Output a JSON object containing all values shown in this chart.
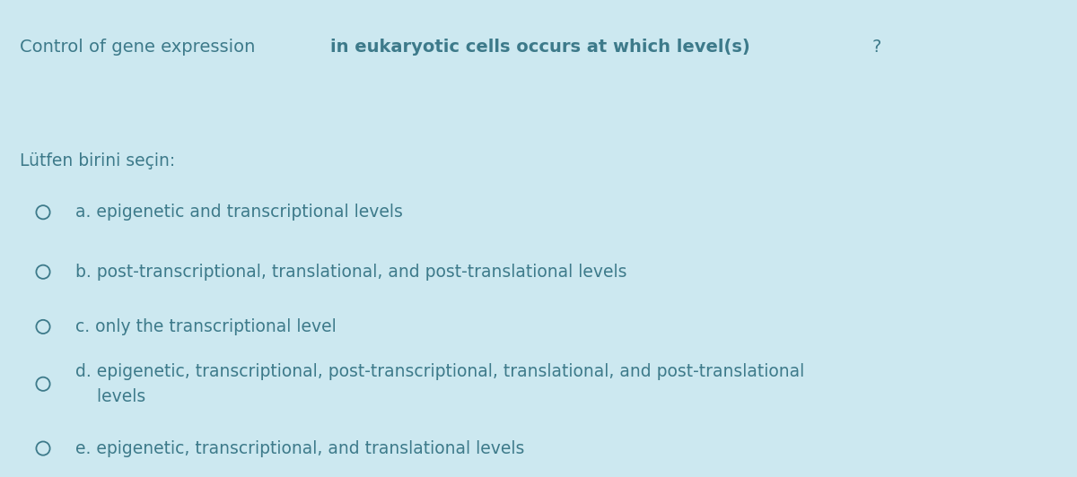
{
  "background_color": "#cce8f0",
  "text_color": "#3d7a8a",
  "title_normal": "Control of gene expression ",
  "title_bold": "in eukaryotic cells occurs at which level(s)",
  "title_end": "?",
  "subtitle": "Lütfen birini seçin:",
  "options": [
    "a. epigenetic and transcriptional levels",
    "b. post-transcriptional, translational, and post-translational levels",
    "c. only the transcriptional level",
    "d. epigenetic, transcriptional, post-transcriptional, translational, and post-translational\n    levels",
    "e. epigenetic, transcriptional, and translational levels"
  ],
  "title_fontsize": 14.0,
  "option_fontsize": 13.5,
  "subtitle_fontsize": 13.5,
  "fig_width": 12.0,
  "fig_height": 5.32
}
